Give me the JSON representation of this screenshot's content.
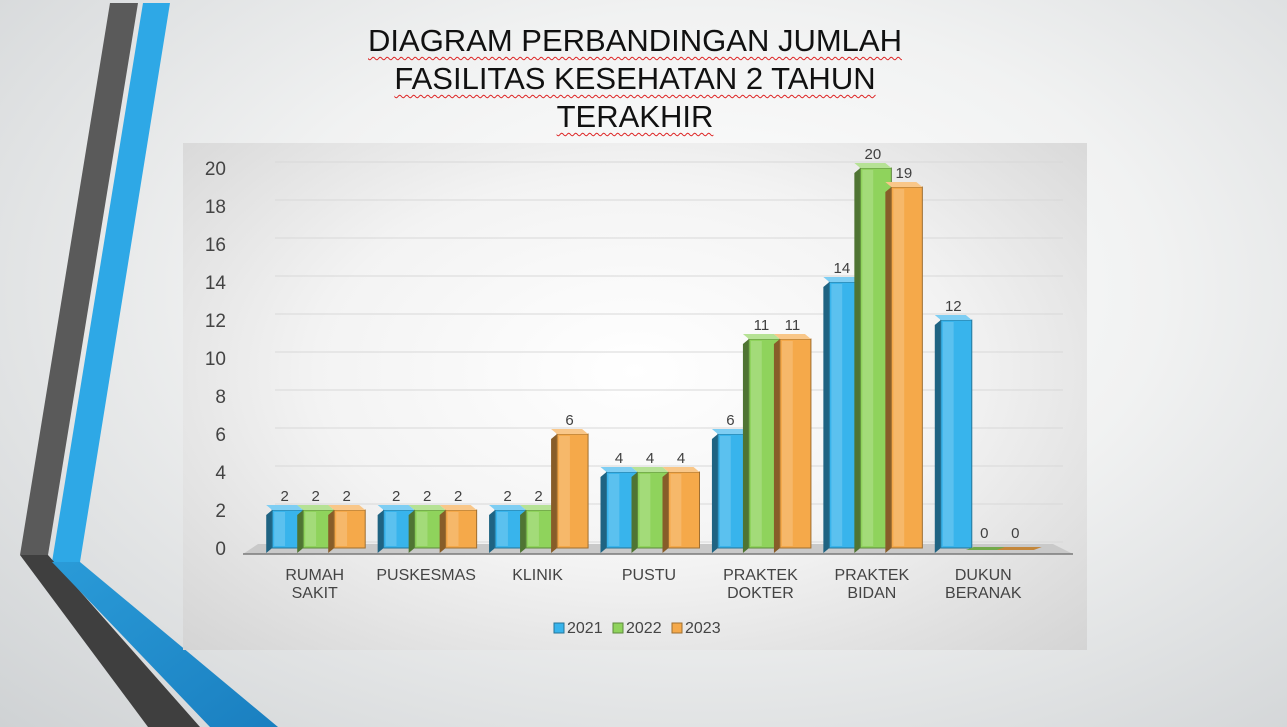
{
  "slide": {
    "title_lines": [
      "DIAGRAM PERBANDINGAN JUMLAH",
      "FASILITAS KESEHATAN 2 TAHUN",
      "TERAKHIR"
    ]
  },
  "colors": {
    "accent_blue": "#2ea8e6",
    "accent_gray": "#555555"
  },
  "chart_data": {
    "type": "bar",
    "title": "DIAGRAM PERBANDINGAN JUMLAH FASILITAS KESEHATAN 2 TAHUN TERAKHIR",
    "categories": [
      [
        "RUMAH",
        "SAKIT"
      ],
      [
        "PUSKESMAS"
      ],
      [
        "KLINIK"
      ],
      [
        "PUSTU"
      ],
      [
        "PRAKTEK",
        "DOKTER"
      ],
      [
        "PRAKTEK",
        "BIDAN"
      ],
      [
        "DUKUN",
        "BERANAK"
      ]
    ],
    "series": [
      {
        "name": "2021",
        "color": "#38b4ec",
        "values": [
          2,
          2,
          2,
          4,
          6,
          14,
          12
        ]
      },
      {
        "name": "2022",
        "color": "#8fd35c",
        "values": [
          2,
          2,
          2,
          4,
          11,
          20,
          0
        ]
      },
      {
        "name": "2023",
        "color": "#f5a94a",
        "values": [
          2,
          2,
          6,
          4,
          11,
          19,
          0
        ]
      }
    ],
    "yticks": [
      0,
      2,
      4,
      6,
      8,
      10,
      12,
      14,
      16,
      18,
      20
    ],
    "ylim": [
      0,
      20
    ],
    "xlabel": "",
    "ylabel": "",
    "grid": true,
    "legend_position": "bottom",
    "data_labels": true,
    "style": "3d-column"
  }
}
